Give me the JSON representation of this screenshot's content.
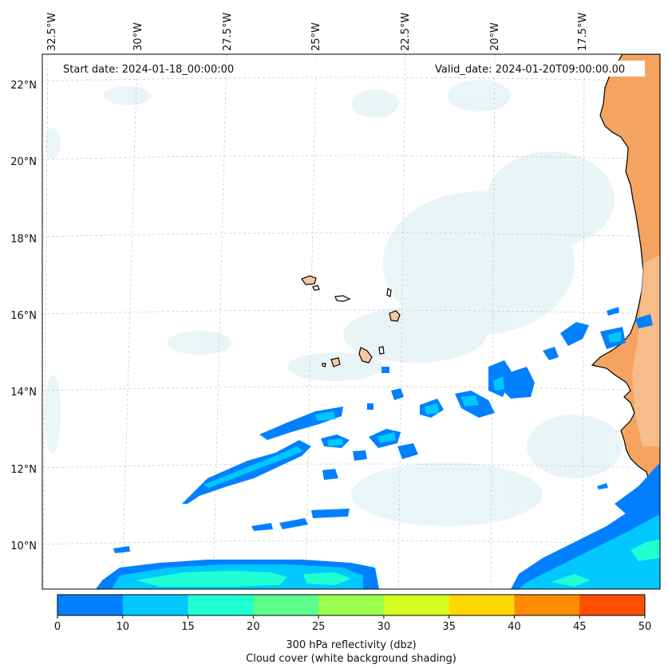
{
  "header": {
    "start_date": "Start date: 2024-01-18_00:00:00",
    "valid_date": "Valid_date: 2024-01-20T09:00:00.00"
  },
  "axes": {
    "lon_labels": [
      "32.5°W",
      "30°W",
      "27.5°W",
      "25°W",
      "22.5°W",
      "20°W",
      "17.5°W"
    ],
    "lat_labels": [
      "22°N",
      "20°N",
      "18°N",
      "16°N",
      "14°N",
      "12°N",
      "10°N"
    ]
  },
  "colorbar": {
    "ticks": [
      "0",
      "10",
      "15",
      "20",
      "25",
      "30",
      "35",
      "40",
      "45",
      "50"
    ],
    "colors": [
      "#0080ff",
      "#00c8ff",
      "#1effd2",
      "#5aff8c",
      "#9bff4c",
      "#d4ff1e",
      "#ffd800",
      "#ff8c00",
      "#ff4e00"
    ],
    "label_line1": "300 hPa reflectivity (dbz)",
    "label_line2": "Cloud cover (white background shading)"
  },
  "colors": {
    "land": "#f4a460",
    "land_light": "#f7c89e",
    "cloud_tint": "#d8ecf2",
    "coast": "#000000"
  }
}
